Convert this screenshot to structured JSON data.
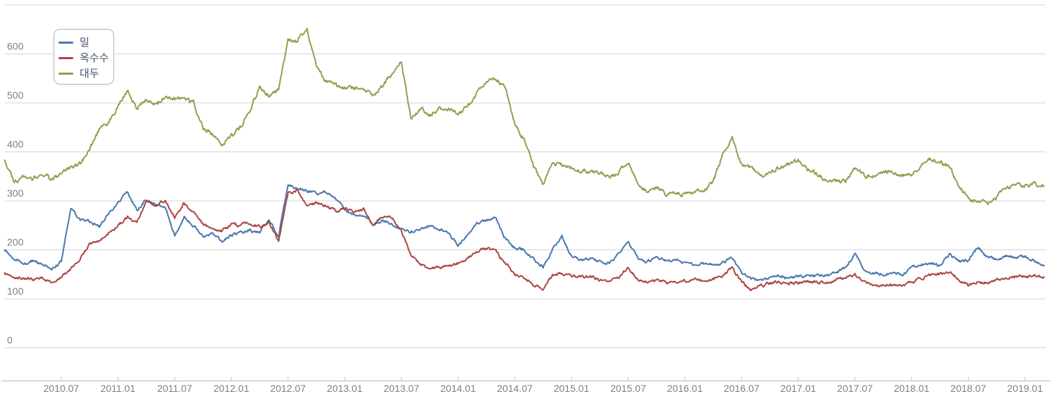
{
  "chart_data": {
    "type": "line",
    "title": "",
    "legend_position": "top-left",
    "grid": true,
    "x_axis": {
      "start_month": "2010.01",
      "end_month": "2019.03",
      "tick_labels": [
        "2010.07",
        "2011.01",
        "2011.07",
        "2012.01",
        "2012.07",
        "2013.01",
        "2013.07",
        "2014.01",
        "2014.07",
        "2015.01",
        "2015.07",
        "2016.01",
        "2016.07",
        "2017.01",
        "2017.07",
        "2018.01",
        "2018.07",
        "2019.01"
      ]
    },
    "y_axis": {
      "tick_labels": [
        "0",
        "100",
        "200",
        "300",
        "400",
        "500",
        "600"
      ],
      "lim": [
        0,
        700
      ],
      "grid_step": 100
    },
    "series": [
      {
        "name": "밀",
        "key": "wheat",
        "color": "#4a78ad",
        "volatility": 2.2,
        "values": [
          200,
          182,
          170,
          178,
          170,
          162,
          176,
          286,
          262,
          258,
          248,
          275,
          295,
          318,
          280,
          303,
          292,
          288,
          230,
          268,
          250,
          228,
          235,
          218,
          230,
          235,
          240,
          235,
          262,
          228,
          335,
          325,
          320,
          315,
          318,
          305,
          282,
          268,
          270,
          252,
          259,
          253,
          241,
          236,
          243,
          250,
          242,
          235,
          211,
          230,
          256,
          259,
          266,
          223,
          203,
          200,
          180,
          165,
          200,
          228,
          187,
          180,
          182,
          175,
          172,
          192,
          215,
          182,
          175,
          184,
          178,
          180,
          172,
          170,
          172,
          171,
          175,
          183,
          152,
          140,
          136,
          142,
          146,
          142,
          145,
          148,
          147,
          148,
          152,
          166,
          190,
          160,
          152,
          150,
          152,
          150,
          165,
          170,
          173,
          168,
          190,
          176,
          178,
          206,
          184,
          180,
          187,
          184,
          186,
          178,
          167
        ]
      },
      {
        "name": "옥수수",
        "key": "corn",
        "color": "#aa4643",
        "volatility": 2.2,
        "values": [
          153,
          140,
          144,
          139,
          143,
          132,
          146,
          161,
          181,
          214,
          219,
          234,
          248,
          268,
          253,
          299,
          290,
          303,
          266,
          295,
          278,
          252,
          243,
          239,
          252,
          250,
          256,
          246,
          258,
          218,
          315,
          321,
          290,
          296,
          290,
          280,
          284,
          277,
          282,
          251,
          268,
          266,
          240,
          189,
          170,
          163,
          164,
          167,
          172,
          182,
          196,
          203,
          196,
          172,
          151,
          144,
          127,
          121,
          148,
          153,
          146,
          144,
          146,
          139,
          137,
          144,
          163,
          139,
          134,
          139,
          134,
          134,
          137,
          139,
          137,
          141,
          148,
          162,
          135,
          118,
          125,
          132,
          135,
          132,
          133,
          136,
          134,
          134,
          138,
          143,
          149,
          135,
          128,
          127,
          126,
          127,
          134,
          141,
          148,
          151,
          154,
          140,
          128,
          136,
          132,
          140,
          143,
          145,
          146,
          146,
          145
        ]
      },
      {
        "name": "대두",
        "key": "soybean",
        "color": "#8ca24f",
        "volatility": 3.2,
        "values": [
          383,
          340,
          348,
          345,
          353,
          345,
          354,
          368,
          376,
          405,
          445,
          458,
          494,
          525,
          487,
          508,
          494,
          512,
          508,
          508,
          500,
          450,
          436,
          415,
          432,
          450,
          488,
          532,
          515,
          527,
          630,
          625,
          648,
          578,
          545,
          537,
          528,
          530,
          528,
          514,
          535,
          560,
          585,
          470,
          488,
          476,
          487,
          490,
          475,
          492,
          520,
          545,
          552,
          530,
          460,
          425,
          370,
          335,
          378,
          372,
          370,
          362,
          358,
          356,
          350,
          360,
          380,
          338,
          318,
          328,
          315,
          318,
          314,
          316,
          323,
          340,
          393,
          428,
          375,
          366,
          348,
          357,
          370,
          376,
          382,
          364,
          355,
          341,
          342,
          338,
          366,
          351,
          354,
          359,
          359,
          351,
          356,
          372,
          384,
          378,
          371,
          330,
          302,
          300,
          293,
          309,
          324,
          333,
          331,
          334,
          330
        ]
      }
    ]
  },
  "style": {
    "background": "#ffffff",
    "grid_color": "#d4d4d4",
    "axis_color": "#c3c3c3",
    "tick_color": "#c6c6c6",
    "axis_label_color": "#7f7f7f",
    "legend_text_color": "#47536a",
    "legend_border_color": "#b2b2b2"
  }
}
